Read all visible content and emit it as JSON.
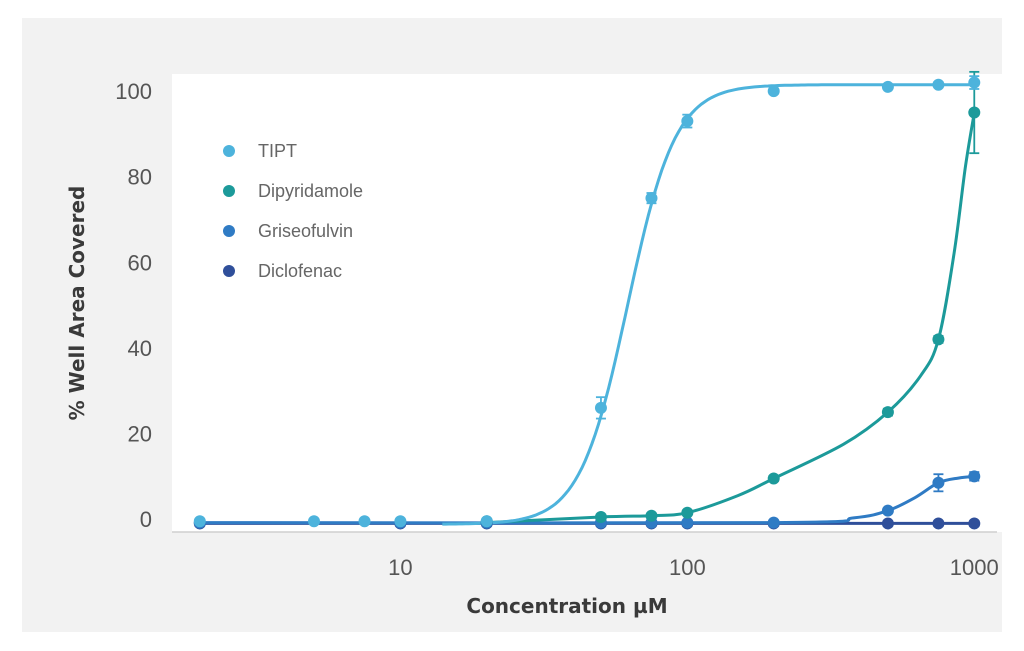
{
  "chart_data": {
    "type": "scatter",
    "xscale": "log",
    "xlabel": "Concentration µM",
    "ylabel": "% Well Area Covered",
    "xlim": [
      1.6,
      1200
    ],
    "ylim": [
      -3,
      104
    ],
    "xticks": [
      10,
      100,
      1000
    ],
    "xtick_labels": [
      "10",
      "100",
      "1000"
    ],
    "yticks": [
      0,
      20,
      40,
      60,
      80,
      100
    ],
    "ytick_labels": [
      "0",
      "20",
      "40",
      "60",
      "80",
      "100"
    ],
    "grid": false,
    "legend_position": "upper-left",
    "series": [
      {
        "name": "TIPT",
        "color": "#4db3dc",
        "x": [
          2,
          5,
          7.5,
          10,
          20,
          50,
          75,
          100,
          200,
          500,
          750,
          1000
        ],
        "y": [
          -0.5,
          -0.5,
          -0.5,
          -0.5,
          -0.5,
          26,
          75,
          93,
          100,
          101,
          101.5,
          102
        ],
        "err": [
          0.5,
          0.5,
          0.5,
          0.5,
          0.5,
          2.5,
          1.2,
          1.5,
          0.6,
          0.5,
          0.6,
          1.5
        ],
        "curve": {
          "kind": "hill",
          "bottom": -1.2,
          "top": 101.5,
          "ec50": 62,
          "hill": 5.2,
          "from": 14
        }
      },
      {
        "name": "Dipyridamole",
        "color": "#1c9a9a",
        "x": [
          20,
          50,
          75,
          100,
          200,
          500,
          750,
          1000
        ],
        "y": [
          -0.5,
          0.5,
          0.8,
          1.5,
          9.5,
          25,
          42,
          95
        ],
        "err": [
          0.3,
          0.4,
          0.4,
          0.5,
          0.6,
          0.8,
          0.8,
          9.5
        ],
        "curve_points": [
          [
            20,
            -0.8
          ],
          [
            50,
            0.5
          ],
          [
            75,
            0.8
          ],
          [
            100,
            1.5
          ],
          [
            150,
            5.5
          ],
          [
            200,
            9.5
          ],
          [
            350,
            17.5
          ],
          [
            500,
            25
          ],
          [
            650,
            33.5
          ],
          [
            750,
            42
          ],
          [
            850,
            62
          ],
          [
            930,
            82
          ],
          [
            1000,
            95
          ]
        ]
      },
      {
        "name": "Griseofulvin",
        "color": "#2f7bc4",
        "x": [
          2,
          10,
          20,
          50,
          75,
          100,
          200,
          500,
          750,
          1000
        ],
        "y": [
          -0.8,
          -0.8,
          -0.8,
          -0.8,
          -0.8,
          -0.8,
          -0.8,
          2,
          8.5,
          10
        ],
        "err": [
          0.3,
          0.3,
          0.3,
          0.3,
          0.3,
          0.3,
          0.3,
          0.5,
          2,
          1
        ],
        "curve_points": [
          [
            2,
            -0.8
          ],
          [
            200,
            -0.8
          ],
          [
            380,
            0.3
          ],
          [
            500,
            2
          ],
          [
            620,
            5
          ],
          [
            750,
            8.5
          ],
          [
            880,
            9.6
          ],
          [
            1000,
            10
          ]
        ]
      },
      {
        "name": "Diclofenac",
        "color": "#2f4f9a",
        "x": [
          2,
          10,
          20,
          50,
          75,
          100,
          200,
          500,
          750,
          1000
        ],
        "y": [
          -1,
          -1,
          -1,
          -1,
          -1,
          -1,
          -1,
          -1,
          -1,
          -1
        ],
        "err": [
          0.2,
          0.2,
          0.2,
          0.2,
          0.2,
          0.2,
          0.2,
          0.2,
          0.2,
          0.2
        ],
        "curve_points": [
          [
            2,
            -1
          ],
          [
            1000,
            -1
          ]
        ]
      }
    ]
  }
}
